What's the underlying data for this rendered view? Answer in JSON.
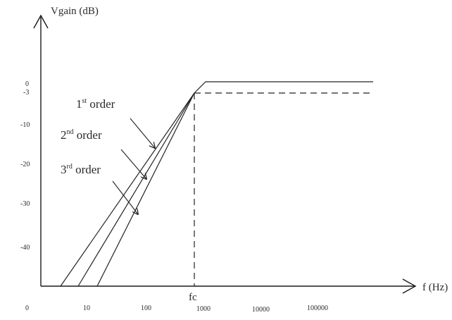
{
  "diagram": {
    "y_axis_label": "Vgain (dB)",
    "x_axis_label": "f (Hz)",
    "fc_label": "fc",
    "y_ticks": [
      "0",
      "-3",
      "-10",
      "-20",
      "-30",
      "-40"
    ],
    "x_ticks": [
      "0",
      "10",
      "100",
      "1000",
      "10000",
      "100000"
    ],
    "curves": [
      {
        "label_main": "1",
        "label_sup": "st",
        "label_rest": " order"
      },
      {
        "label_main": "2",
        "label_sup": "nd",
        "label_rest": " order"
      },
      {
        "label_main": "3",
        "label_sup": "rd",
        "label_rest": " order"
      }
    ]
  }
}
